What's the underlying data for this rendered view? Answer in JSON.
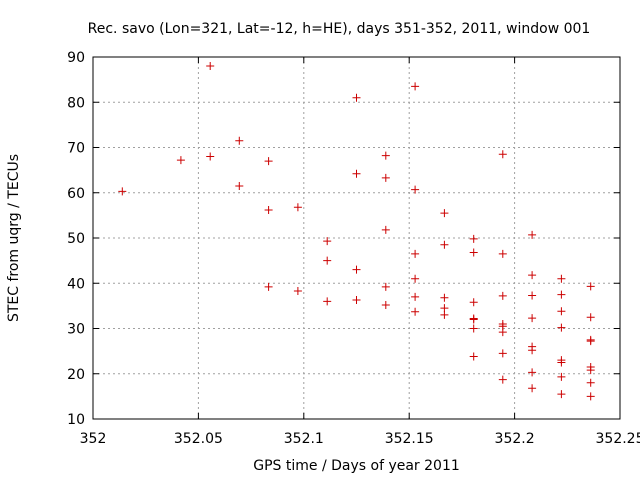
{
  "chart_data": {
    "type": "scatter",
    "title": "Rec. savo (Lon=321, Lat=-12, h=HE), days 351-352, 2011, window 001",
    "xlabel": "GPS time / Days of year 2011",
    "ylabel": "STEC from uqrg / TECUs",
    "xlim": [
      352,
      352.25
    ],
    "ylim": [
      10,
      90
    ],
    "xticks": [
      352,
      352.05,
      352.1,
      352.15,
      352.2,
      352.25
    ],
    "xtick_labels": [
      "352",
      "352.05",
      "352.1",
      "352.15",
      "352.2",
      "352.25"
    ],
    "yticks": [
      10,
      20,
      30,
      40,
      50,
      60,
      70,
      80,
      90
    ],
    "ytick_labels": [
      "10",
      "20",
      "30",
      "40",
      "50",
      "60",
      "70",
      "80",
      "90"
    ],
    "grid": true,
    "marker_color": "#cc0000",
    "points": [
      [
        352.0139,
        60.3
      ],
      [
        352.0417,
        67.2
      ],
      [
        352.0556,
        68.0
      ],
      [
        352.0556,
        88.0
      ],
      [
        352.0694,
        71.5
      ],
      [
        352.0694,
        61.5
      ],
      [
        352.0833,
        67.0
      ],
      [
        352.0833,
        56.2
      ],
      [
        352.0833,
        39.2
      ],
      [
        352.0972,
        56.8
      ],
      [
        352.0972,
        38.3
      ],
      [
        352.1111,
        49.3
      ],
      [
        352.1111,
        45.0
      ],
      [
        352.1111,
        36.0
      ],
      [
        352.125,
        81.0
      ],
      [
        352.125,
        64.2
      ],
      [
        352.125,
        43.0
      ],
      [
        352.125,
        36.3
      ],
      [
        352.1389,
        68.2
      ],
      [
        352.1389,
        63.3
      ],
      [
        352.1389,
        51.8
      ],
      [
        352.1389,
        39.2
      ],
      [
        352.1389,
        35.2
      ],
      [
        352.1528,
        83.5
      ],
      [
        352.1528,
        60.7
      ],
      [
        352.1528,
        46.5
      ],
      [
        352.1528,
        41.0
      ],
      [
        352.1528,
        37.0
      ],
      [
        352.1528,
        33.7
      ],
      [
        352.1667,
        55.5
      ],
      [
        352.1667,
        48.5
      ],
      [
        352.1667,
        36.8
      ],
      [
        352.1667,
        34.5
      ],
      [
        352.1667,
        33.0
      ],
      [
        352.1806,
        49.8
      ],
      [
        352.1806,
        46.8
      ],
      [
        352.1806,
        35.8
      ],
      [
        352.1806,
        32.2
      ],
      [
        352.1806,
        32.0
      ],
      [
        352.1806,
        30.0
      ],
      [
        352.1806,
        23.8
      ],
      [
        352.1944,
        68.5
      ],
      [
        352.1944,
        46.5
      ],
      [
        352.1944,
        37.2
      ],
      [
        352.1944,
        31.0
      ],
      [
        352.1944,
        30.5
      ],
      [
        352.1944,
        29.2
      ],
      [
        352.1944,
        24.5
      ],
      [
        352.1944,
        18.7
      ],
      [
        352.2083,
        50.7
      ],
      [
        352.2083,
        41.8
      ],
      [
        352.2083,
        37.3
      ],
      [
        352.2083,
        32.3
      ],
      [
        352.2083,
        26.0
      ],
      [
        352.2083,
        25.2
      ],
      [
        352.2083,
        20.3
      ],
      [
        352.2083,
        16.8
      ],
      [
        352.2222,
        41.0
      ],
      [
        352.2222,
        37.5
      ],
      [
        352.2222,
        33.8
      ],
      [
        352.2222,
        30.2
      ],
      [
        352.2222,
        23.0
      ],
      [
        352.2222,
        22.5
      ],
      [
        352.2222,
        19.3
      ],
      [
        352.2222,
        15.5
      ],
      [
        352.2361,
        39.3
      ],
      [
        352.2361,
        32.5
      ],
      [
        352.2361,
        27.5
      ],
      [
        352.2361,
        27.2
      ],
      [
        352.2361,
        21.5
      ],
      [
        352.2361,
        20.8
      ],
      [
        352.2361,
        18.0
      ],
      [
        352.2361,
        15.0
      ]
    ]
  }
}
